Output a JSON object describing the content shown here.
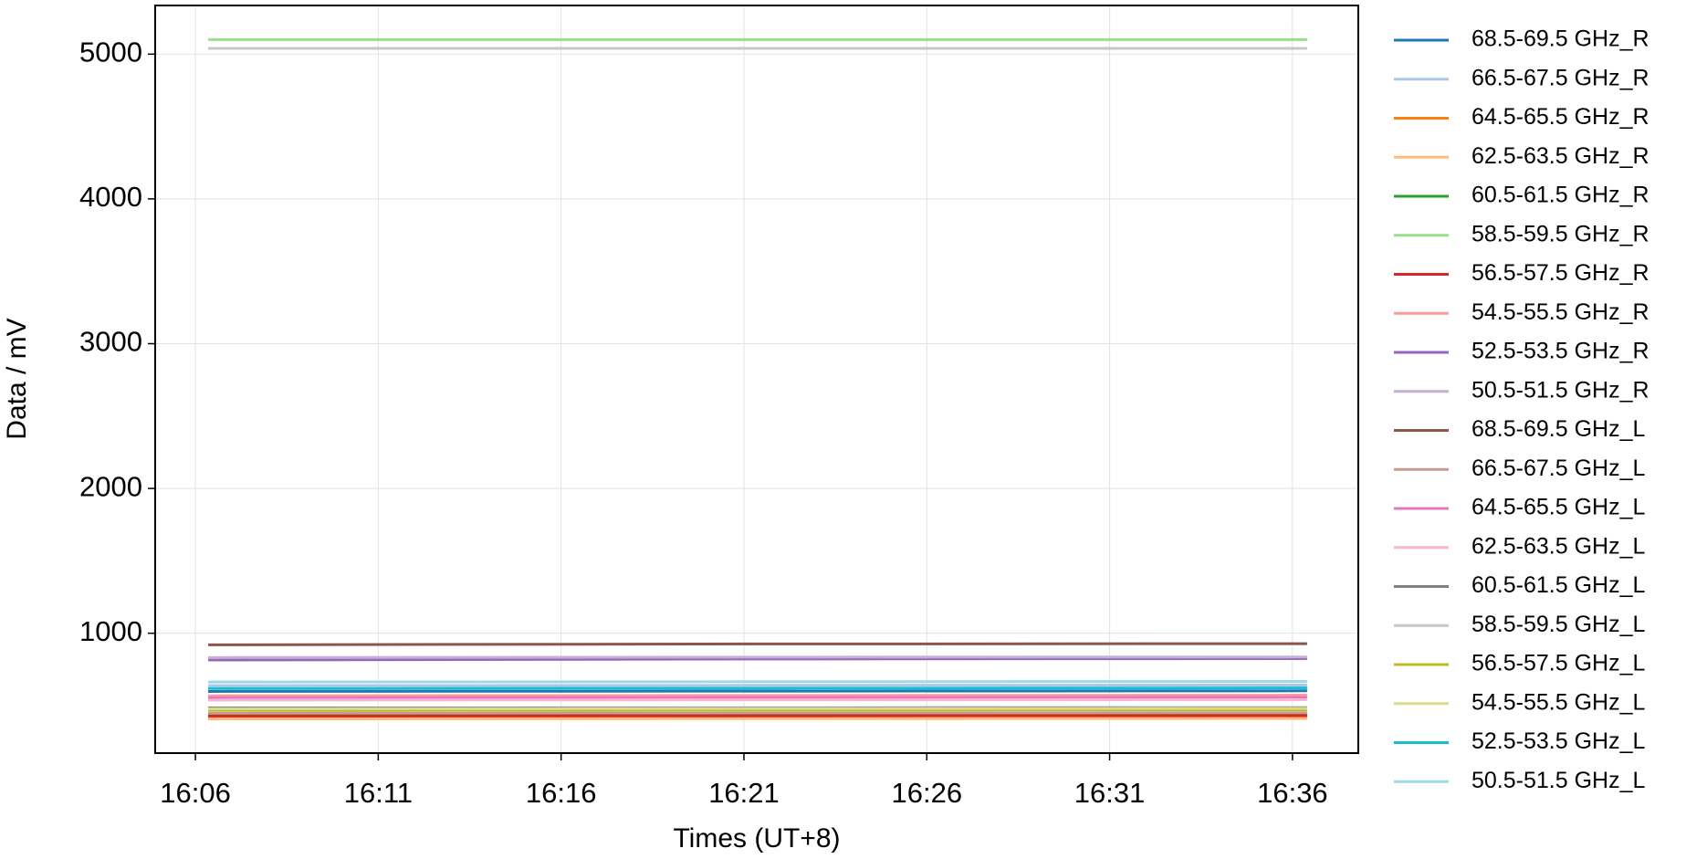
{
  "chart_data": {
    "type": "line",
    "xlabel": "Times (UT+8)",
    "ylabel": "Data / mV",
    "x": [
      966.35,
      981.4,
      996.4
    ],
    "xlim": [
      964.9,
      997.8
    ],
    "xticks": [
      {
        "value": 966,
        "label": "16:06"
      },
      {
        "value": 971,
        "label": "16:11"
      },
      {
        "value": 976,
        "label": "16:16"
      },
      {
        "value": 981,
        "label": "16:21"
      },
      {
        "value": 986,
        "label": "16:26"
      },
      {
        "value": 991,
        "label": "16:31"
      },
      {
        "value": 996,
        "label": "16:36"
      }
    ],
    "ylim": [
      172,
      5336
    ],
    "yticks": [
      1000,
      2000,
      3000,
      4000,
      5000
    ],
    "grid": true,
    "legend": "outside-right",
    "series": [
      {
        "name": "68.5-69.5 GHz_R",
        "color": "#1f77b4",
        "values": [
          598,
          600,
          602
        ]
      },
      {
        "name": "66.5-67.5 GHz_R",
        "color": "#aec7e8",
        "values": [
          638,
          640,
          642
        ]
      },
      {
        "name": "64.5-65.5 GHz_R",
        "color": "#ff7f0e",
        "values": [
          418,
          420,
          421
        ]
      },
      {
        "name": "62.5-63.5 GHz_R",
        "color": "#ffbb78",
        "values": [
          408,
          410,
          411
        ]
      },
      {
        "name": "60.5-61.5 GHz_R",
        "color": "#2ca02c",
        "values": [
          438,
          440,
          441
        ]
      },
      {
        "name": "58.5-59.5 GHz_R",
        "color": "#98df8a",
        "values": [
          5100,
          5100,
          5100
        ]
      },
      {
        "name": "56.5-57.5 GHz_R",
        "color": "#d62728",
        "values": [
          428,
          430,
          431
        ]
      },
      {
        "name": "54.5-55.5 GHz_R",
        "color": "#ff9896",
        "values": [
          568,
          570,
          572
        ]
      },
      {
        "name": "52.5-53.5 GHz_R",
        "color": "#9467bd",
        "values": [
          815,
          822,
          825
        ]
      },
      {
        "name": "50.5-51.5 GHz_R",
        "color": "#c5b0d5",
        "values": [
          832,
          835,
          836
        ]
      },
      {
        "name": "68.5-69.5 GHz_L",
        "color": "#8c564b",
        "values": [
          920,
          926,
          928
        ]
      },
      {
        "name": "66.5-67.5 GHz_L",
        "color": "#c49c94",
        "values": [
          448,
          450,
          451
        ]
      },
      {
        "name": "64.5-65.5 GHz_L",
        "color": "#e377c2",
        "values": [
          553,
          555,
          557
        ]
      },
      {
        "name": "62.5-63.5 GHz_L",
        "color": "#f7b6d2",
        "values": [
          538,
          540,
          541
        ]
      },
      {
        "name": "60.5-61.5 GHz_L",
        "color": "#7f7f7f",
        "values": [
          484,
          485,
          486
        ]
      },
      {
        "name": "58.5-59.5 GHz_L",
        "color": "#c7c7c7",
        "values": [
          5040,
          5040,
          5040
        ]
      },
      {
        "name": "56.5-57.5 GHz_L",
        "color": "#bcbd22",
        "values": [
          468,
          470,
          471
        ]
      },
      {
        "name": "54.5-55.5 GHz_L",
        "color": "#dbdb8d",
        "values": [
          478,
          480,
          481
        ]
      },
      {
        "name": "52.5-53.5 GHz_L",
        "color": "#17becf",
        "values": [
          618,
          620,
          622
        ]
      },
      {
        "name": "50.5-51.5 GHz_L",
        "color": "#9edae5",
        "values": [
          663,
          665,
          667
        ]
      }
    ]
  }
}
